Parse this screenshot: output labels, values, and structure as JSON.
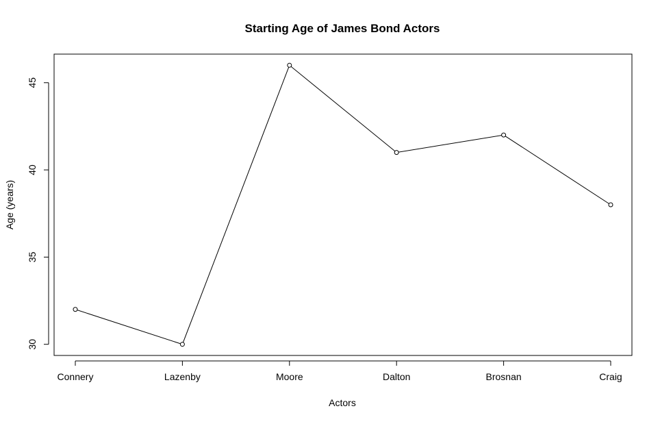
{
  "chart_data": {
    "type": "line",
    "title": "Starting Age of James Bond Actors",
    "xlabel": "Actors",
    "ylabel": "Age (years)",
    "categories": [
      "Connery",
      "Lazenby",
      "Moore",
      "Dalton",
      "Brosnan",
      "Craig"
    ],
    "values": [
      32,
      30,
      46,
      41,
      42,
      38
    ],
    "ylim": [
      29.36,
      46.64
    ],
    "yticks": [
      30,
      35,
      40,
      45
    ],
    "grid": false,
    "markers": "open-circle",
    "line_color": "#000000"
  }
}
